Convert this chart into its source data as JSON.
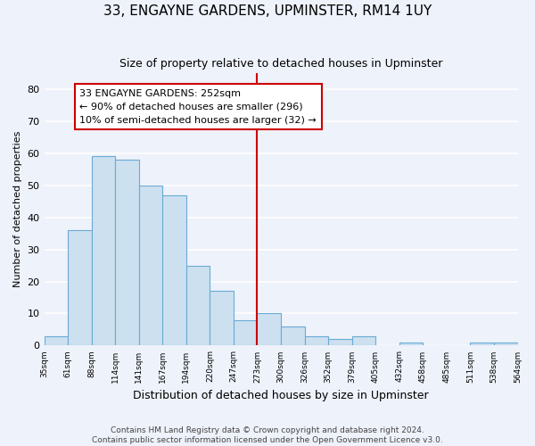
{
  "title": "33, ENGAYNE GARDENS, UPMINSTER, RM14 1UY",
  "subtitle": "Size of property relative to detached houses in Upminster",
  "xlabel": "Distribution of detached houses by size in Upminster",
  "ylabel": "Number of detached properties",
  "bin_labels": [
    "35sqm",
    "61sqm",
    "88sqm",
    "114sqm",
    "141sqm",
    "167sqm",
    "194sqm",
    "220sqm",
    "247sqm",
    "273sqm",
    "300sqm",
    "326sqm",
    "352sqm",
    "379sqm",
    "405sqm",
    "432sqm",
    "458sqm",
    "485sqm",
    "511sqm",
    "538sqm",
    "564sqm"
  ],
  "bar_heights": [
    3,
    36,
    59,
    58,
    50,
    47,
    25,
    17,
    8,
    10,
    6,
    3,
    2,
    3,
    0,
    1,
    0,
    0,
    1,
    1
  ],
  "bar_color": "#cce0f0",
  "bar_edge_color": "#6aaad4",
  "highlight_line_color": "#cc0000",
  "highlight_line_index": 8,
  "annotation_line1": "33 ENGAYNE GARDENS: 252sqm",
  "annotation_line2": "← 90% of detached houses are smaller (296)",
  "annotation_line3": "10% of semi-detached houses are larger (32) →",
  "annotation_box_color": "#ffffff",
  "annotation_box_edge_color": "#cc0000",
  "ylim": [
    0,
    85
  ],
  "yticks": [
    0,
    10,
    20,
    30,
    40,
    50,
    60,
    70,
    80
  ],
  "footer_line1": "Contains HM Land Registry data © Crown copyright and database right 2024.",
  "footer_line2": "Contains public sector information licensed under the Open Government Licence v3.0.",
  "background_color": "#eef2fb",
  "grid_color": "#ffffff"
}
